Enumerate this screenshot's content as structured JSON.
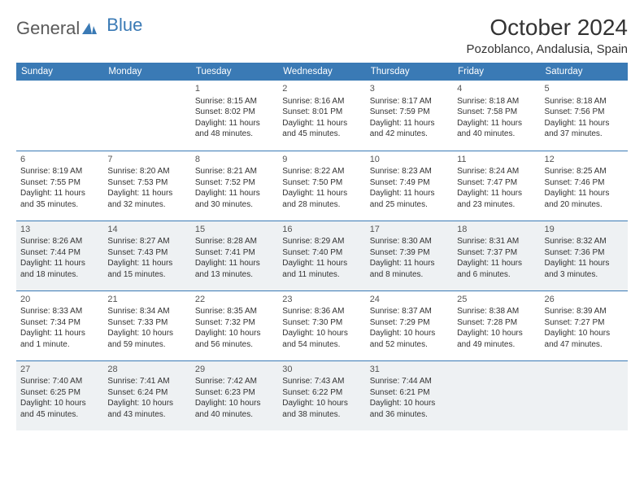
{
  "logo": {
    "text1": "General",
    "text2": "Blue",
    "text_color": "#5a5a5a",
    "accent_color": "#3a7ab5"
  },
  "title": "October 2024",
  "location": "Pozoblanco, Andalusia, Spain",
  "colors": {
    "header_bg": "#3a7ab5",
    "header_text": "#ffffff",
    "border": "#3a7ab5",
    "shade_bg": "#eef1f3",
    "body_text": "#333333"
  },
  "day_headers": [
    "Sunday",
    "Monday",
    "Tuesday",
    "Wednesday",
    "Thursday",
    "Friday",
    "Saturday"
  ],
  "weeks": [
    {
      "shade": false,
      "days": [
        null,
        null,
        {
          "n": "1",
          "sr": "8:15 AM",
          "ss": "8:02 PM",
          "dl": "11 hours and 48 minutes."
        },
        {
          "n": "2",
          "sr": "8:16 AM",
          "ss": "8:01 PM",
          "dl": "11 hours and 45 minutes."
        },
        {
          "n": "3",
          "sr": "8:17 AM",
          "ss": "7:59 PM",
          "dl": "11 hours and 42 minutes."
        },
        {
          "n": "4",
          "sr": "8:18 AM",
          "ss": "7:58 PM",
          "dl": "11 hours and 40 minutes."
        },
        {
          "n": "5",
          "sr": "8:18 AM",
          "ss": "7:56 PM",
          "dl": "11 hours and 37 minutes."
        }
      ]
    },
    {
      "shade": false,
      "days": [
        {
          "n": "6",
          "sr": "8:19 AM",
          "ss": "7:55 PM",
          "dl": "11 hours and 35 minutes."
        },
        {
          "n": "7",
          "sr": "8:20 AM",
          "ss": "7:53 PM",
          "dl": "11 hours and 32 minutes."
        },
        {
          "n": "8",
          "sr": "8:21 AM",
          "ss": "7:52 PM",
          "dl": "11 hours and 30 minutes."
        },
        {
          "n": "9",
          "sr": "8:22 AM",
          "ss": "7:50 PM",
          "dl": "11 hours and 28 minutes."
        },
        {
          "n": "10",
          "sr": "8:23 AM",
          "ss": "7:49 PM",
          "dl": "11 hours and 25 minutes."
        },
        {
          "n": "11",
          "sr": "8:24 AM",
          "ss": "7:47 PM",
          "dl": "11 hours and 23 minutes."
        },
        {
          "n": "12",
          "sr": "8:25 AM",
          "ss": "7:46 PM",
          "dl": "11 hours and 20 minutes."
        }
      ]
    },
    {
      "shade": true,
      "days": [
        {
          "n": "13",
          "sr": "8:26 AM",
          "ss": "7:44 PM",
          "dl": "11 hours and 18 minutes."
        },
        {
          "n": "14",
          "sr": "8:27 AM",
          "ss": "7:43 PM",
          "dl": "11 hours and 15 minutes."
        },
        {
          "n": "15",
          "sr": "8:28 AM",
          "ss": "7:41 PM",
          "dl": "11 hours and 13 minutes."
        },
        {
          "n": "16",
          "sr": "8:29 AM",
          "ss": "7:40 PM",
          "dl": "11 hours and 11 minutes."
        },
        {
          "n": "17",
          "sr": "8:30 AM",
          "ss": "7:39 PM",
          "dl": "11 hours and 8 minutes."
        },
        {
          "n": "18",
          "sr": "8:31 AM",
          "ss": "7:37 PM",
          "dl": "11 hours and 6 minutes."
        },
        {
          "n": "19",
          "sr": "8:32 AM",
          "ss": "7:36 PM",
          "dl": "11 hours and 3 minutes."
        }
      ]
    },
    {
      "shade": false,
      "days": [
        {
          "n": "20",
          "sr": "8:33 AM",
          "ss": "7:34 PM",
          "dl": "11 hours and 1 minute."
        },
        {
          "n": "21",
          "sr": "8:34 AM",
          "ss": "7:33 PM",
          "dl": "10 hours and 59 minutes."
        },
        {
          "n": "22",
          "sr": "8:35 AM",
          "ss": "7:32 PM",
          "dl": "10 hours and 56 minutes."
        },
        {
          "n": "23",
          "sr": "8:36 AM",
          "ss": "7:30 PM",
          "dl": "10 hours and 54 minutes."
        },
        {
          "n": "24",
          "sr": "8:37 AM",
          "ss": "7:29 PM",
          "dl": "10 hours and 52 minutes."
        },
        {
          "n": "25",
          "sr": "8:38 AM",
          "ss": "7:28 PM",
          "dl": "10 hours and 49 minutes."
        },
        {
          "n": "26",
          "sr": "8:39 AM",
          "ss": "7:27 PM",
          "dl": "10 hours and 47 minutes."
        }
      ]
    },
    {
      "shade": true,
      "days": [
        {
          "n": "27",
          "sr": "7:40 AM",
          "ss": "6:25 PM",
          "dl": "10 hours and 45 minutes."
        },
        {
          "n": "28",
          "sr": "7:41 AM",
          "ss": "6:24 PM",
          "dl": "10 hours and 43 minutes."
        },
        {
          "n": "29",
          "sr": "7:42 AM",
          "ss": "6:23 PM",
          "dl": "10 hours and 40 minutes."
        },
        {
          "n": "30",
          "sr": "7:43 AM",
          "ss": "6:22 PM",
          "dl": "10 hours and 38 minutes."
        },
        {
          "n": "31",
          "sr": "7:44 AM",
          "ss": "6:21 PM",
          "dl": "10 hours and 36 minutes."
        },
        null,
        null
      ]
    }
  ],
  "labels": {
    "sunrise": "Sunrise:",
    "sunset": "Sunset:",
    "daylight": "Daylight:"
  }
}
